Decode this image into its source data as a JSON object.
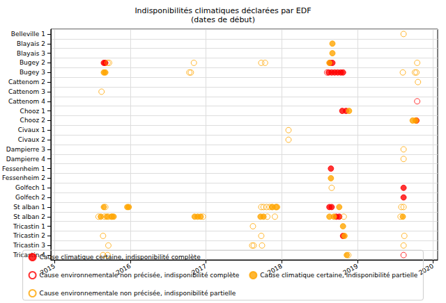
{
  "chart_data": {
    "type": "scatter",
    "title": "Indisponibilités climatiques déclarées par EDF\n(dates de début)",
    "categories": [
      "Belleville 1",
      "Blayais 2",
      "Blayais 3",
      "Bugey 2",
      "Bugey 3",
      "Cattenom 2",
      "Cattenom 3",
      "Cattenom 4",
      "Chooz 1",
      "Chooz 2",
      "Civaux 1",
      "Civaux 2",
      "Dampierre 3",
      "Dampierre 4",
      "Fessenheim 1",
      "Fessenheim 2",
      "Golfech 1",
      "Golfech 2",
      "St alban 1",
      "St alban 2",
      "Tricastin 1",
      "Tricastin 2",
      "Tricastin 3",
      "Tricastin 4"
    ],
    "xlim": [
      2014.95,
      2020.06
    ],
    "xticks": [
      2015,
      2016,
      2017,
      2018,
      2019,
      2020
    ],
    "grid": true,
    "legend": "bottom",
    "series": [
      {
        "name": "Cause climatique certaine, indisponibilité complète",
        "color": "#ff0000",
        "marker": "filled",
        "x": [
          2015.65,
          2015.67,
          2018.64,
          2018.67,
          2018.62,
          2018.66,
          2018.7,
          2018.74,
          2018.78,
          2018.81,
          2018.8,
          2018.85,
          2019.78,
          2018.65,
          2019.61,
          2019.61,
          2018.63,
          2018.66,
          2018.72,
          2018.76,
          2018.81
        ],
        "y": [
          "Bugey 2",
          "Bugey 2",
          "Bugey 2",
          "Bugey 2",
          "Bugey 3",
          "Bugey 3",
          "Bugey 3",
          "Bugey 3",
          "Bugey 3",
          "Bugey 3",
          "Chooz 1",
          "Chooz 1",
          "Chooz 2",
          "Fessenheim 1",
          "Golfech 1",
          "Golfech 2",
          "St alban 1",
          "St alban 1",
          "St alban 2",
          "St alban 2",
          "Tricastin 2"
        ]
      },
      {
        "name": "Cause environnementale non précisée, indisponibilité complète",
        "color": "#ff0000",
        "marker": "hollow",
        "x": [
          2018.6,
          2019.79,
          2019.61
        ],
        "y": [
          "Bugey 3",
          "Cattenom 4",
          "Tricastin 4"
        ]
      },
      {
        "name": "Cause climatique certaine, indisponibilité partielle",
        "color": "#ffa500",
        "marker": "filled",
        "x": [
          2018.67,
          2018.67,
          2018.63,
          2015.65,
          2015.67,
          2018.89,
          2019.73,
          2019.77,
          2018.65,
          2015.65,
          2015.96,
          2015.98,
          2017.87,
          2017.93,
          2018.76,
          2015.61,
          2015.69,
          2015.75,
          2015.78,
          2016.85,
          2016.89,
          2016.93,
          2017.72,
          2017.76,
          2018.63,
          2018.69,
          2019.6,
          2018.81,
          2018.83,
          2018.86
        ],
        "y": [
          "Blayais 2",
          "Blayais 3",
          "Bugey 2",
          "Bugey 3",
          "Bugey 3",
          "Chooz 1",
          "Chooz 2",
          "Chooz 2",
          "Fessenheim 2",
          "St alban 1",
          "St alban 1",
          "St alban 1",
          "St alban 1",
          "St alban 1",
          "St alban 1",
          "St alban 2",
          "St alban 2",
          "St alban 2",
          "St alban 2",
          "St alban 2",
          "St alban 2",
          "St alban 2",
          "St alban 2",
          "St alban 2",
          "St alban 2",
          "St alban 2",
          "St alban 2",
          "Tricastin 1",
          "Tricastin 2",
          "Tricastin 4"
        ]
      },
      {
        "name": "Cause environnementale non précisée, indisponibilité partielle",
        "color": "#ffa500",
        "marker": "hollow",
        "x": [
          2019.61,
          2015.7,
          2015.72,
          2016.84,
          2017.73,
          2017.78,
          2019.79,
          2016.78,
          2016.8,
          2019.6,
          2019.76,
          2019.78,
          2019.8,
          2015.62,
          2018.09,
          2018.09,
          2019.61,
          2019.61,
          2018.66,
          2015.67,
          2017.73,
          2017.76,
          2017.8,
          2017.84,
          2017.88,
          2017.92,
          2017.94,
          2019.58,
          2019.61,
          2015.58,
          2015.66,
          2015.71,
          2015.76,
          2016.96,
          2017.81,
          2017.91,
          2018.82,
          2019.57,
          2017.62,
          2015.64,
          2017.73,
          2019.62,
          2015.71,
          2017.61,
          2017.63,
          2017.74,
          2019.61,
          2015.64,
          2015.7,
          2018.88
        ],
        "y": [
          "Belleville 1",
          "Bugey 2",
          "Bugey 2",
          "Bugey 2",
          "Bugey 2",
          "Bugey 2",
          "Bugey 2",
          "Bugey 3",
          "Bugey 3",
          "Bugey 3",
          "Bugey 3",
          "Bugey 3",
          "Cattenom 2",
          "Cattenom 3",
          "Civaux 1",
          "Civaux 2",
          "Dampierre 3",
          "Dampierre 4",
          "Golfech 1",
          "St alban 1",
          "St alban 1",
          "St alban 1",
          "St alban 1",
          "St alban 1",
          "St alban 1",
          "St alban 1",
          "St alban 1",
          "St alban 1",
          "St alban 1",
          "St alban 2",
          "St alban 2",
          "St alban 2",
          "St alban 2",
          "St alban 2",
          "St alban 2",
          "St alban 2",
          "St alban 2",
          "St alban 2",
          "Tricastin 1",
          "Tricastin 2",
          "Tricastin 2",
          "Tricastin 2",
          "Tricastin 3",
          "Tricastin 3",
          "Tricastin 3",
          "Tricastin 3",
          "Tricastin 3",
          "Tricastin 4",
          "Tricastin 4",
          "Tricastin 4"
        ]
      }
    ]
  }
}
